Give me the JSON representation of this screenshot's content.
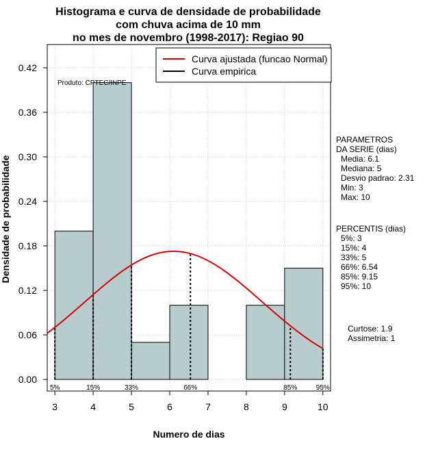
{
  "chart_data": {
    "type": "bar",
    "title": [
      "Histograma e curva de densidade de probabilidade",
      "com chuva acima de 10 mm",
      "no mes de novembro (1998-2017): Regiao 90"
    ],
    "xlabel": "Numero de dias",
    "ylabel": "Densidade de probabilidade",
    "xlim": [
      2.8,
      10.2
    ],
    "ylim": [
      0,
      0.44
    ],
    "xticks": [
      3,
      4,
      5,
      6,
      7,
      8,
      9,
      10
    ],
    "yticks": [
      0.0,
      0.06,
      0.12,
      0.18,
      0.24,
      0.3,
      0.36,
      0.42
    ],
    "ytick_labels": [
      "0.00",
      "0.06",
      "0.12",
      "0.18",
      "0.24",
      "0.30",
      "0.36",
      "0.42"
    ],
    "bins": [
      {
        "start": 3,
        "end": 4,
        "density": 0.2
      },
      {
        "start": 4,
        "end": 5,
        "density": 0.4
      },
      {
        "start": 5,
        "end": 6,
        "density": 0.05
      },
      {
        "start": 6,
        "end": 7,
        "density": 0.1
      },
      {
        "start": 7,
        "end": 8,
        "density": 0.0
      },
      {
        "start": 8,
        "end": 9,
        "density": 0.1
      },
      {
        "start": 9,
        "end": 10,
        "density": 0.15
      }
    ],
    "normal_curve": {
      "mean": 6.1,
      "sd": 2.31,
      "color": "#dd0000"
    },
    "percentile_lines": [
      {
        "label": "5%",
        "x": 3
      },
      {
        "label": "15%",
        "x": 4
      },
      {
        "label": "33%",
        "x": 5
      },
      {
        "label": "66%",
        "x": 6.54
      },
      {
        "label": "85%",
        "x": 9.15
      },
      {
        "label": "95%",
        "x": 10
      }
    ],
    "legend": [
      {
        "label": "Curva ajustada (funcao Normal)",
        "color": "#dd0000"
      },
      {
        "label": "Curva empirica",
        "color": "#000000"
      }
    ],
    "product_note": "Produto: CPTEC/INPE",
    "bar_color": "#b7cccc"
  },
  "side_panel": {
    "params_title": [
      "PARAMETROS",
      "DA SERIE (dias)"
    ],
    "params": [
      "Media: 6.1",
      "Mediana: 5",
      "Desvio padrao: 2.31",
      "Min: 3",
      "Max: 10"
    ],
    "percentis_title": "PERCENTIS (dias)",
    "percentis": [
      "5%: 3",
      "15%: 4",
      "33%: 5",
      "66%: 6.54",
      "85%: 9.15",
      "95%: 10"
    ],
    "stats": [
      "Curtose: 1.9",
      "Assimetria: 1"
    ]
  }
}
